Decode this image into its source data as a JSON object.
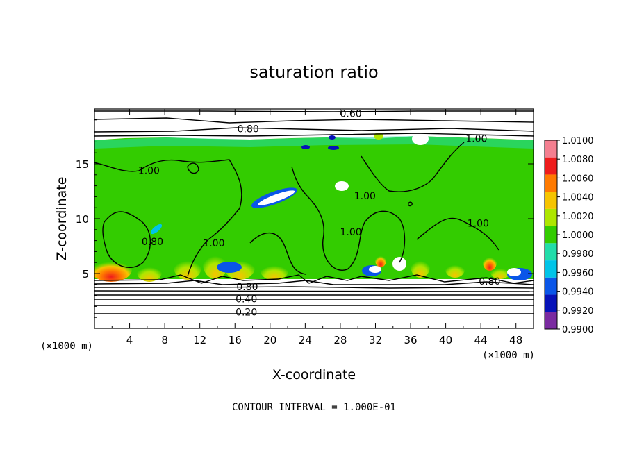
{
  "chart_data": {
    "type": "heatmap",
    "title": "saturation ratio",
    "xlabel": "X-coordinate",
    "ylabel": "Z-coordinate",
    "x_unit_label": "(×1000 m)",
    "z_unit_label": "(×1000 m)",
    "xlim": [
      0,
      50
    ],
    "ylim": [
      0,
      20
    ],
    "x_ticks": [
      4,
      8,
      12,
      16,
      20,
      24,
      28,
      32,
      36,
      40,
      44,
      48
    ],
    "y_ticks": [
      5,
      10,
      15
    ],
    "colorbar": {
      "levels": [
        "1.0100",
        "1.0080",
        "1.0060",
        "1.0040",
        "1.0020",
        "1.0000",
        "0.9980",
        "0.9960",
        "0.9940",
        "0.9920",
        "0.9900"
      ],
      "colors": [
        "#f47f90",
        "#ee1c1c",
        "#ff7a00",
        "#f6c400",
        "#aee600",
        "#33cc00",
        "#22ddaa",
        "#00c4e8",
        "#0a56e8",
        "#0612b8",
        "#7a2aa0"
      ]
    },
    "contour_labels": [
      {
        "text": "0.60",
        "x": 29.2,
        "z": 19.6
      },
      {
        "text": "0.80",
        "x": 17.5,
        "z": 18.2
      },
      {
        "text": "1.00",
        "x": 43.5,
        "z": 17.3
      },
      {
        "text": "1.00",
        "x": 6.2,
        "z": 14.4
      },
      {
        "text": "1.00",
        "x": 30.8,
        "z": 12.1
      },
      {
        "text": "1.00",
        "x": 29.2,
        "z": 8.8
      },
      {
        "text": "1.00",
        "x": 43.7,
        "z": 9.6
      },
      {
        "text": "1.00",
        "x": 13.6,
        "z": 7.8
      },
      {
        "text": "0.80",
        "x": 6.6,
        "z": 7.9
      },
      {
        "text": "0.80",
        "x": 17.4,
        "z": 3.8
      },
      {
        "text": "0.80",
        "x": 45.0,
        "z": 4.3
      },
      {
        "text": "0.40",
        "x": 17.3,
        "z": 2.7
      },
      {
        "text": "0.20",
        "x": 17.3,
        "z": 1.5
      }
    ],
    "contour_interval_note": "CONTOUR INTERVAL = 1.000E-01"
  },
  "theme": {
    "field_green": "#33cc00",
    "contour_color": "#000000",
    "background": "#ffffff"
  }
}
